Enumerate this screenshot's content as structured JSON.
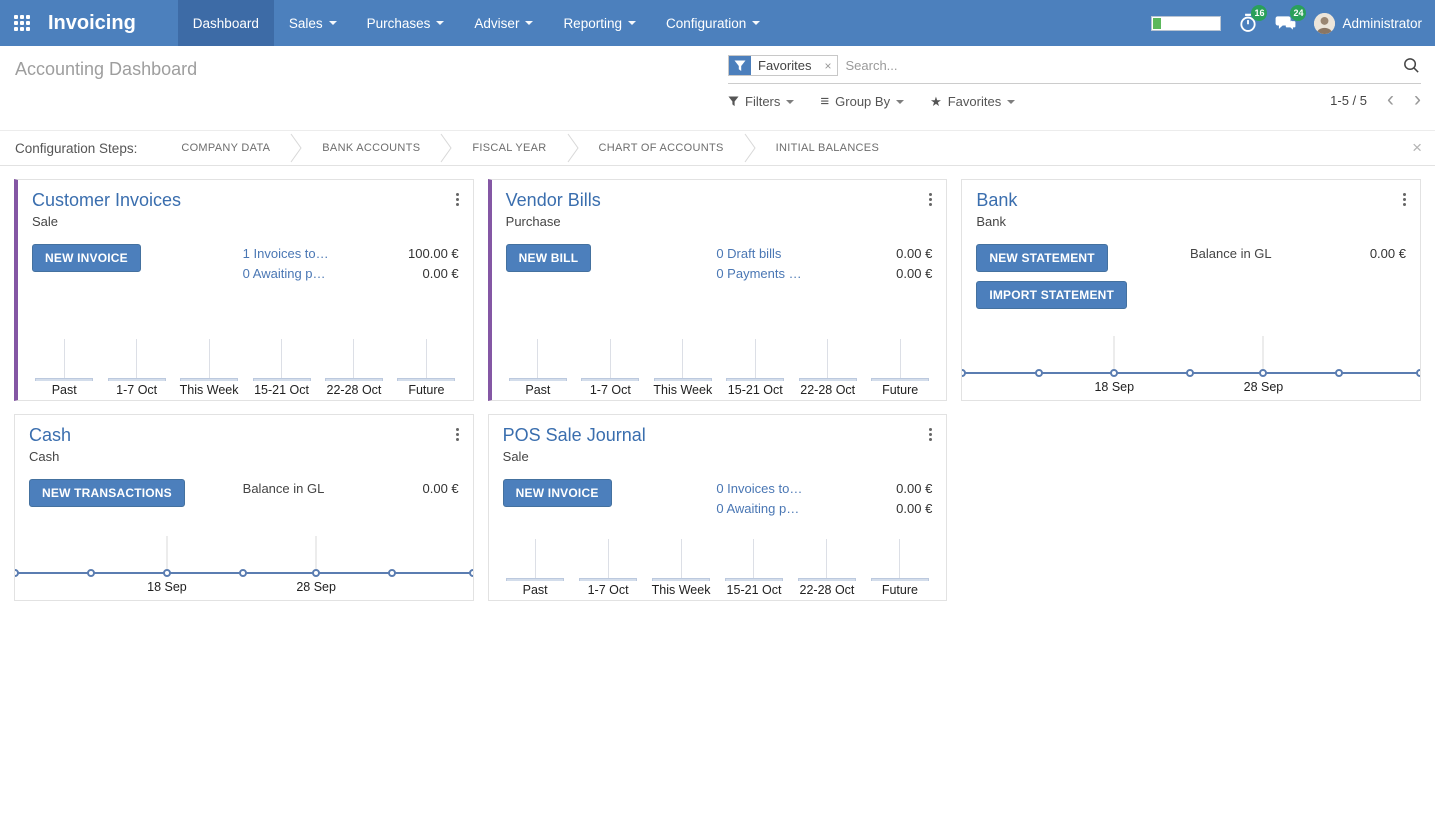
{
  "app": {
    "brand": "Invoicing",
    "nav_items": [
      {
        "label": "Dashboard",
        "active": true,
        "has_dropdown": false
      },
      {
        "label": "Sales",
        "active": false,
        "has_dropdown": true
      },
      {
        "label": "Purchases",
        "active": false,
        "has_dropdown": true
      },
      {
        "label": "Adviser",
        "active": false,
        "has_dropdown": true
      },
      {
        "label": "Reporting",
        "active": false,
        "has_dropdown": true
      },
      {
        "label": "Configuration",
        "active": false,
        "has_dropdown": true
      }
    ],
    "activity_badge": "16",
    "message_badge": "24",
    "user_name": "Administrator"
  },
  "control_panel": {
    "title": "Accounting Dashboard",
    "search": {
      "facet_label": "Favorites",
      "facet_remove": "×",
      "placeholder": "Search..."
    },
    "filters_label": "Filters",
    "group_by_label": "Group By",
    "favorites_label": "Favorites",
    "pager": "1-5 / 5",
    "pager_prev": "‹",
    "pager_next": "›"
  },
  "config_steps": {
    "label": "Configuration Steps:",
    "steps": [
      "COMPANY DATA",
      "BANK ACCOUNTS",
      "FISCAL YEAR",
      "CHART OF ACCOUNTS",
      "INITIAL BALANCES"
    ],
    "close": "×"
  },
  "cards": [
    {
      "title": "Customer Invoices",
      "subtitle": "Sale",
      "buttons": [
        "NEW INVOICE"
      ],
      "rows": [
        {
          "link": "1 Invoices to…",
          "amount": "100.00 €"
        },
        {
          "link": "0 Awaiting p…",
          "amount": "0.00 €"
        }
      ],
      "chart": {
        "type": "bar",
        "categories": [
          "Past",
          "1-7 Oct",
          "This Week",
          "15-21 Oct",
          "22-28 Oct",
          "Future"
        ],
        "values": [
          0,
          0,
          0,
          0,
          0,
          0
        ]
      }
    },
    {
      "title": "Vendor Bills",
      "subtitle": "Purchase",
      "buttons": [
        "NEW BILL"
      ],
      "rows": [
        {
          "link": "0 Draft bills",
          "amount": "0.00 €"
        },
        {
          "link": "0 Payments …",
          "amount": "0.00 €"
        }
      ],
      "chart": {
        "type": "bar",
        "categories": [
          "Past",
          "1-7 Oct",
          "This Week",
          "15-21 Oct",
          "22-28 Oct",
          "Future"
        ],
        "values": [
          0,
          0,
          0,
          0,
          0,
          0
        ]
      }
    },
    {
      "title": "Bank",
      "subtitle": "Bank",
      "buttons": [
        "NEW STATEMENT",
        "IMPORT STATEMENT"
      ],
      "rows": [
        {
          "label": "Balance in GL",
          "amount": "0.00 €"
        }
      ],
      "chart": {
        "type": "line",
        "values": [
          0,
          0,
          0,
          0,
          0,
          0,
          0
        ],
        "dot_positions": [
          0,
          16.7,
          33.2,
          49.8,
          65.8,
          82.3,
          100
        ],
        "x_ticks": [
          {
            "label": "18 Sep",
            "pos": 33.2
          },
          {
            "label": "28 Sep",
            "pos": 65.8
          }
        ]
      }
    },
    {
      "title": "Cash",
      "subtitle": "Cash",
      "buttons": [
        "NEW TRANSACTIONS"
      ],
      "rows": [
        {
          "label": "Balance in GL",
          "amount": "0.00 €"
        }
      ],
      "chart": {
        "type": "line",
        "values": [
          0,
          0,
          0,
          0,
          0,
          0,
          0
        ],
        "dot_positions": [
          0,
          16.7,
          33.2,
          49.8,
          65.8,
          82.3,
          100
        ],
        "x_ticks": [
          {
            "label": "18 Sep",
            "pos": 33.2
          },
          {
            "label": "28 Sep",
            "pos": 65.8
          }
        ]
      }
    },
    {
      "title": "POS Sale Journal",
      "subtitle": "Sale",
      "buttons": [
        "NEW INVOICE"
      ],
      "rows": [
        {
          "link": "0 Invoices to…",
          "amount": "0.00 €"
        },
        {
          "link": "0 Awaiting p…",
          "amount": "0.00 €"
        }
      ],
      "chart": {
        "type": "bar",
        "categories": [
          "Past",
          "1-7 Oct",
          "This Week",
          "15-21 Oct",
          "22-28 Oct",
          "Future"
        ],
        "values": [
          0,
          0,
          0,
          0,
          0,
          0
        ]
      }
    }
  ],
  "colors": {
    "navbar": "#4c80bd",
    "navbar_active": "#3d6ba6",
    "primary_button": "#4c7fbc",
    "accent_purple": "#8457a4",
    "badge_green": "#2aa05a",
    "progress_green": "#5cb85c",
    "title_blue": "#3a6eae",
    "link_blue": "#4a77b4",
    "spark_line": "#5b7db1"
  }
}
